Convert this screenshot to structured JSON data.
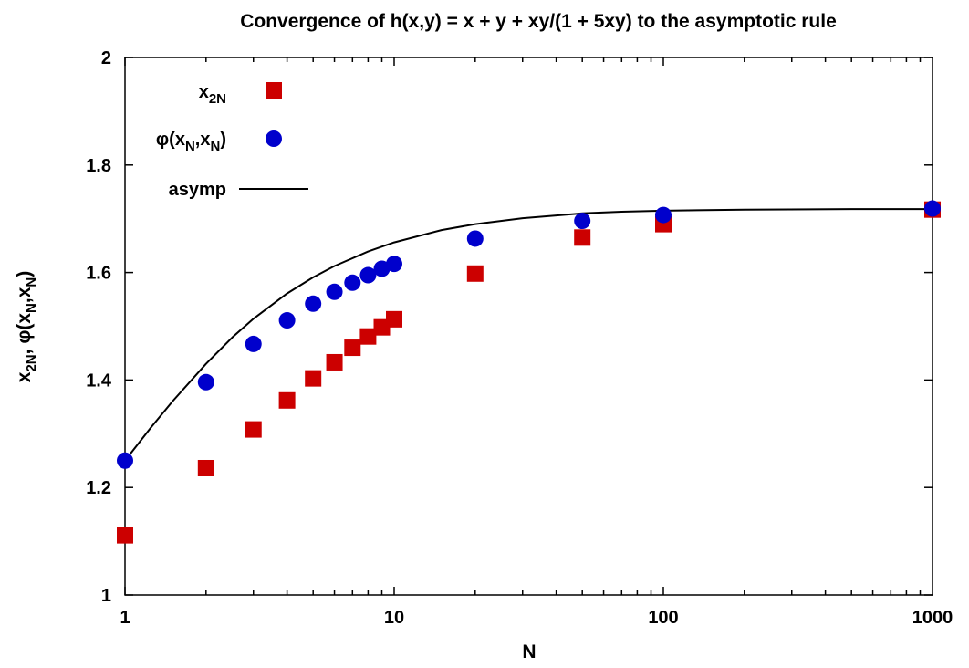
{
  "chart_data": {
    "type": "scatter",
    "title": "Convergence of h(x,y) = x + y + xy/(1 + 5xy) to the asymptotic rule",
    "xlabel": "N",
    "ylabel": "x_2N,  φ(x_N,x_N)",
    "x_scale": "log",
    "xlim": [
      1,
      1000
    ],
    "ylim": [
      1,
      2
    ],
    "x_ticks": [
      "1",
      "10",
      "100",
      "1000"
    ],
    "y_ticks": [
      "1",
      "1.2",
      "1.4",
      "1.6",
      "1.8",
      "2"
    ],
    "legend_position": "top-left",
    "grid": false,
    "series": [
      {
        "name": "x_2N",
        "marker": "square",
        "color": "#cc0000",
        "x": [
          1,
          2,
          3,
          4,
          5,
          6,
          7,
          8,
          9,
          10,
          20,
          50,
          100,
          1000
        ],
        "y": [
          1.111,
          1.236,
          1.308,
          1.362,
          1.403,
          1.433,
          1.46,
          1.481,
          1.498,
          1.513,
          1.598,
          1.665,
          1.69,
          1.717
        ]
      },
      {
        "name": "φ(x_N,x_N)",
        "marker": "circle",
        "color": "#0000cc",
        "x": [
          1,
          2,
          3,
          4,
          5,
          6,
          7,
          8,
          9,
          10,
          20,
          50,
          100,
          1000
        ],
        "y": [
          1.25,
          1.396,
          1.467,
          1.511,
          1.542,
          1.564,
          1.581,
          1.595,
          1.607,
          1.616,
          1.663,
          1.696,
          1.707,
          1.719
        ]
      },
      {
        "name": "asymp",
        "type": "line",
        "color": "#000000",
        "x": [
          1,
          1.25,
          1.5,
          2,
          2.5,
          3,
          4,
          5,
          6,
          8,
          10,
          15,
          20,
          30,
          50,
          70,
          100,
          200,
          500,
          1000
        ],
        "y": [
          1.25,
          1.312,
          1.36,
          1.43,
          1.479,
          1.514,
          1.561,
          1.591,
          1.612,
          1.639,
          1.656,
          1.679,
          1.69,
          1.701,
          1.71,
          1.713,
          1.715,
          1.717,
          1.718,
          1.718
        ]
      }
    ]
  }
}
